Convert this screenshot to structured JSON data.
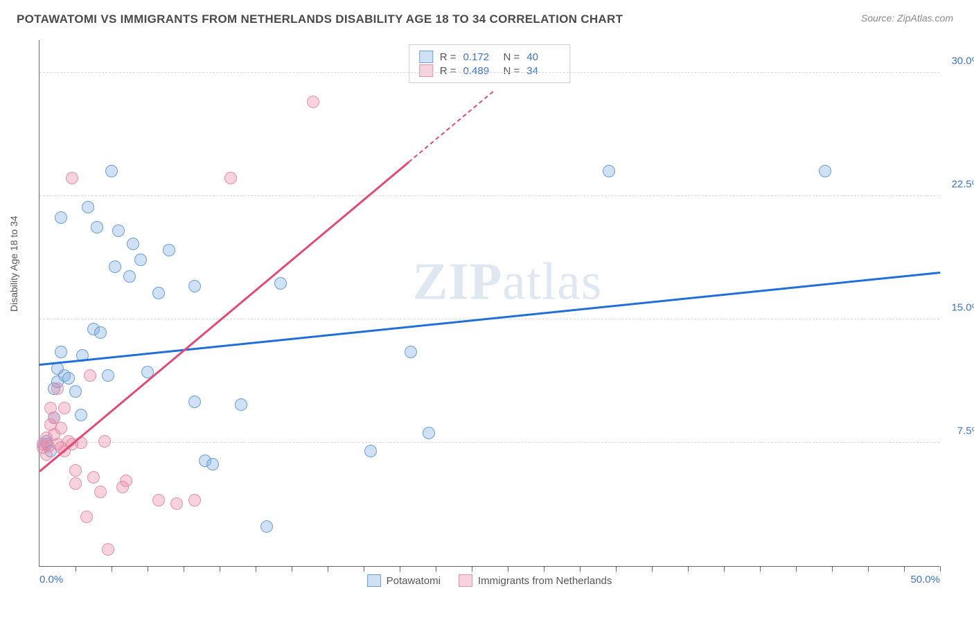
{
  "header": {
    "title": "POTAWATOMI VS IMMIGRANTS FROM NETHERLANDS DISABILITY AGE 18 TO 34 CORRELATION CHART",
    "source": "Source: ZipAtlas.com"
  },
  "chart": {
    "type": "scatter",
    "ylabel": "Disability Age 18 to 34",
    "watermark": "ZIPatlas",
    "xlim": [
      0,
      50
    ],
    "ylim": [
      0,
      32
    ],
    "x_ticks_minor": [
      2,
      4,
      6,
      8,
      10,
      12,
      14,
      16,
      18,
      20,
      22,
      24,
      26,
      28,
      30,
      32,
      34,
      36,
      38,
      40,
      42,
      44,
      46,
      48,
      50
    ],
    "x_ticks_major": [
      0,
      50
    ],
    "x_tick_labels": {
      "0": "0.0%",
      "50": "50.0%"
    },
    "y_gridlines": [
      7.5,
      15.0,
      22.5,
      30.0
    ],
    "y_tick_labels": {
      "7.5": "7.5%",
      "15.0": "15.0%",
      "22.5": "22.5%",
      "30.0": "30.0%"
    },
    "background_color": "#ffffff",
    "grid_color": "#d8d8d8",
    "axis_color": "#666666",
    "tick_label_color": "#3b73c7",
    "series": [
      {
        "name": "Potawatomi",
        "marker_fill": "rgba(120,170,225,0.35)",
        "marker_stroke": "#6a9fd4",
        "trend_color": "#1f6fd6",
        "R": "0.172",
        "N": "40",
        "trend": {
          "x1": 0,
          "y1": 12.2,
          "x2": 50,
          "y2": 17.8
        },
        "points": [
          [
            0.4,
            7.6
          ],
          [
            0.4,
            7.4
          ],
          [
            0.6,
            7.0
          ],
          [
            0.8,
            9.0
          ],
          [
            1.0,
            12.0
          ],
          [
            0.8,
            10.8
          ],
          [
            1.0,
            11.2
          ],
          [
            1.2,
            13.0
          ],
          [
            1.4,
            11.6
          ],
          [
            1.6,
            11.4
          ],
          [
            1.2,
            21.2
          ],
          [
            2.0,
            10.6
          ],
          [
            2.3,
            9.2
          ],
          [
            2.4,
            12.8
          ],
          [
            2.7,
            21.8
          ],
          [
            3.0,
            14.4
          ],
          [
            3.2,
            20.6
          ],
          [
            3.4,
            14.2
          ],
          [
            3.8,
            11.6
          ],
          [
            4.0,
            24.0
          ],
          [
            4.2,
            18.2
          ],
          [
            4.4,
            20.4
          ],
          [
            5.0,
            17.6
          ],
          [
            5.2,
            19.6
          ],
          [
            5.6,
            18.6
          ],
          [
            6.0,
            11.8
          ],
          [
            6.6,
            16.6
          ],
          [
            7.2,
            19.2
          ],
          [
            8.6,
            10.0
          ],
          [
            8.6,
            17.0
          ],
          [
            9.2,
            6.4
          ],
          [
            9.6,
            6.2
          ],
          [
            11.2,
            9.8
          ],
          [
            12.6,
            2.4
          ],
          [
            13.4,
            17.2
          ],
          [
            18.4,
            7.0
          ],
          [
            20.6,
            13.0
          ],
          [
            21.6,
            8.1
          ],
          [
            31.6,
            24.0
          ],
          [
            43.6,
            24.0
          ]
        ]
      },
      {
        "name": "Immigrants from Netherlands",
        "marker_fill": "rgba(235,130,160,0.35)",
        "marker_stroke": "#e291aa",
        "trend_color": "#e24a78",
        "R": "0.489",
        "N": "34",
        "trend": {
          "x1": 0,
          "y1": 5.7,
          "x2": 20.5,
          "y2": 24.5,
          "dash_to_x": 25.2,
          "dash_to_y": 28.8
        },
        "points": [
          [
            0.2,
            7.4
          ],
          [
            0.2,
            7.2
          ],
          [
            0.4,
            6.8
          ],
          [
            0.4,
            7.8
          ],
          [
            0.5,
            7.3
          ],
          [
            0.6,
            8.6
          ],
          [
            0.6,
            9.6
          ],
          [
            0.8,
            8.0
          ],
          [
            0.8,
            9.0
          ],
          [
            1.0,
            7.4
          ],
          [
            1.0,
            10.8
          ],
          [
            1.2,
            7.2
          ],
          [
            1.2,
            8.4
          ],
          [
            1.4,
            7.0
          ],
          [
            1.4,
            9.6
          ],
          [
            1.6,
            7.6
          ],
          [
            1.8,
            7.4
          ],
          [
            1.8,
            23.6
          ],
          [
            2.0,
            5.0
          ],
          [
            2.0,
            5.8
          ],
          [
            2.3,
            7.5
          ],
          [
            2.6,
            3.0
          ],
          [
            2.8,
            11.6
          ],
          [
            3.0,
            5.4
          ],
          [
            3.4,
            4.5
          ],
          [
            3.6,
            7.6
          ],
          [
            3.8,
            1.0
          ],
          [
            4.6,
            4.8
          ],
          [
            4.8,
            5.2
          ],
          [
            6.6,
            4.0
          ],
          [
            7.6,
            3.8
          ],
          [
            8.6,
            4.0
          ],
          [
            10.6,
            23.6
          ],
          [
            15.2,
            28.2
          ]
        ]
      }
    ],
    "legend_top_labels": {
      "R": "R =",
      "N": "N ="
    },
    "legend_bottom": [
      "Potawatomi",
      "Immigrants from Netherlands"
    ]
  }
}
